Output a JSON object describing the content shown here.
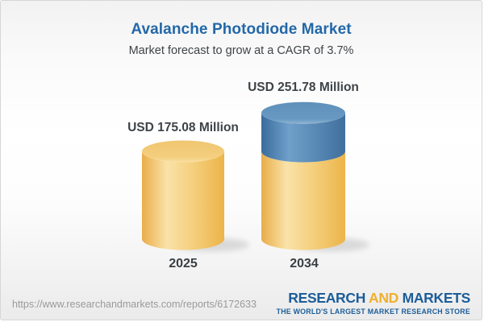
{
  "header": {
    "title": "Avalanche Photodiode Market",
    "subtitle": "Market forecast to grow at a CAGR of 3.7%"
  },
  "chart_data": {
    "type": "bar",
    "subtype": "3d-cylinder",
    "categories": [
      "2025",
      "2034"
    ],
    "values": [
      175.08,
      251.78
    ],
    "value_labels": [
      "USD 175.08 Million",
      "USD 251.78 Million"
    ],
    "unit": "USD Million",
    "cagr_pct": 3.7,
    "title": "Avalanche Photodiode Market",
    "xlabel": "",
    "ylabel": "",
    "legend": "none",
    "grid": "off",
    "colors": {
      "base_segment_gold": "#F2CA74",
      "growth_segment_blue": "#6495BE"
    },
    "notes": "2034 cylinder shows 2025 base value in gold with growth portion stacked in blue on top"
  },
  "footer": {
    "url": "https://www.researchandmarkets.com/reports/6172633",
    "logo": {
      "part1": "RESEARCH",
      "part2": "AND",
      "part3": "MARKETS",
      "tagline": "THE WORLD'S LARGEST MARKET RESEARCH STORE",
      "blue": "#1c5d99",
      "gold": "#f0af2e"
    }
  }
}
